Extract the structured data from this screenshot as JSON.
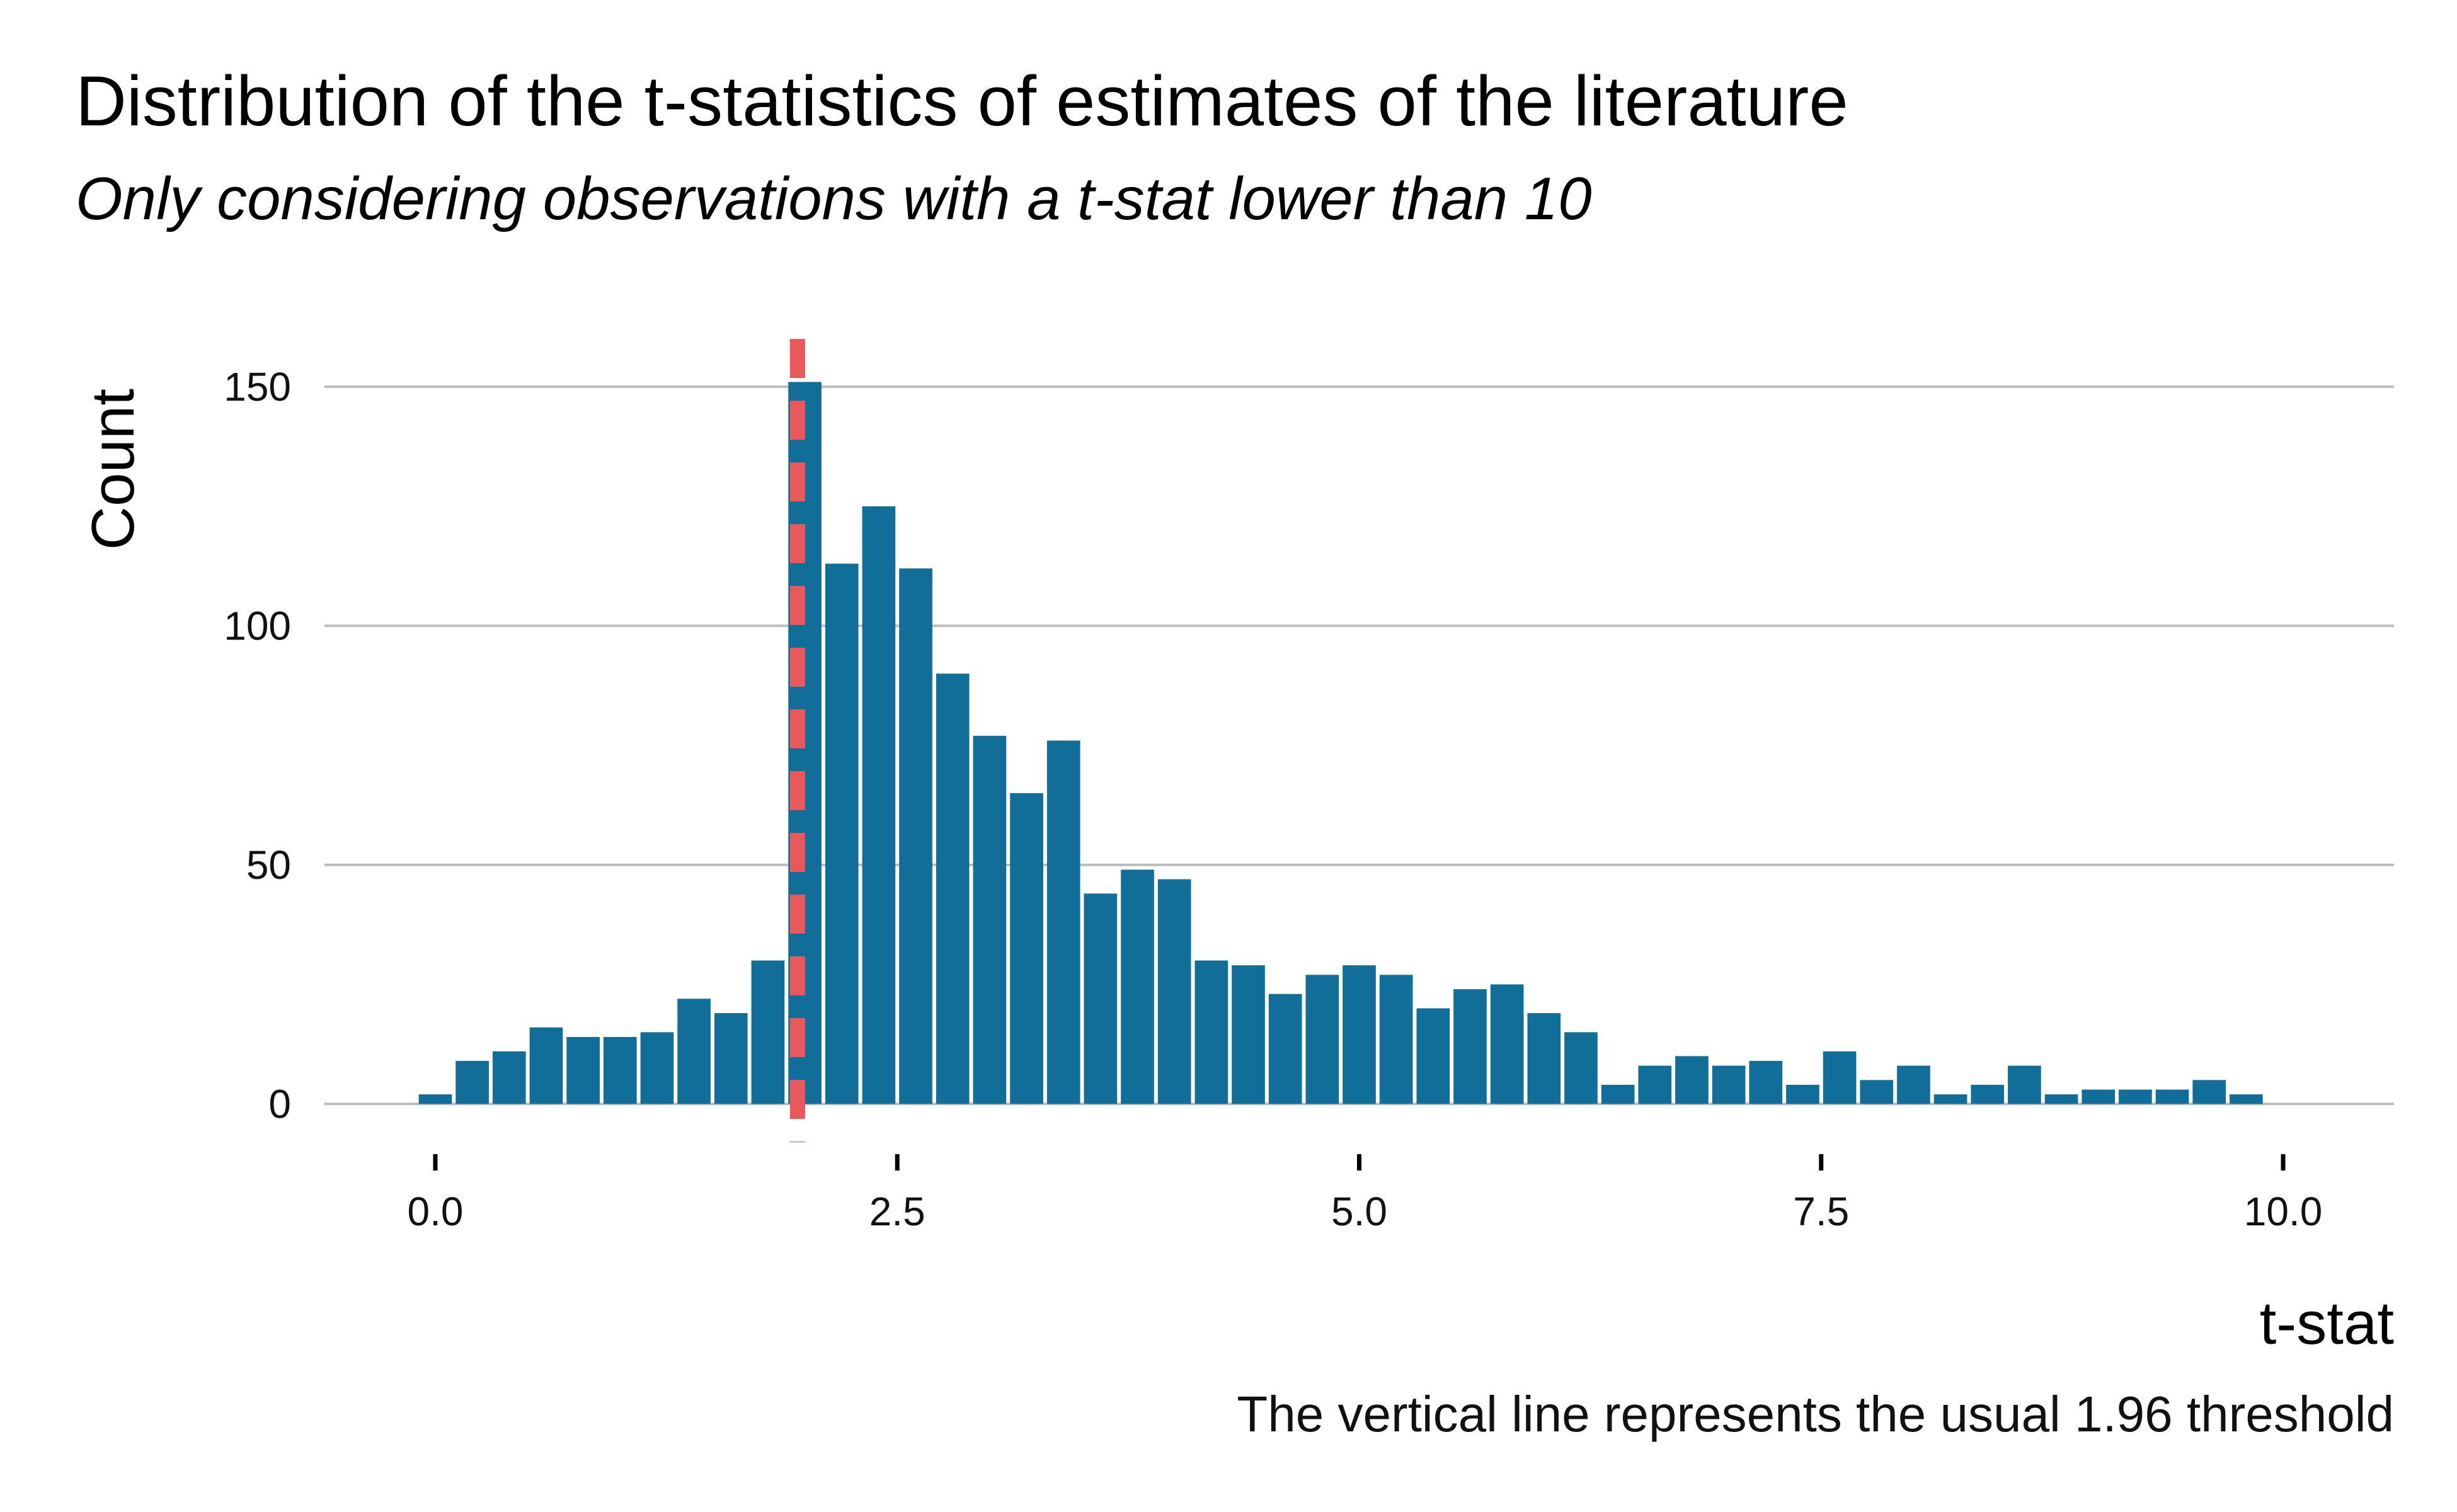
{
  "chart_data": {
    "type": "bar",
    "title": "Distribution of the t-statistics of estimates of the literature",
    "subtitle": "Only considering observations with a t-stat lower than 10",
    "xlabel": "t-stat",
    "ylabel": "Count",
    "caption": "The vertical line represents the usual 1.96 threshold",
    "xlim": [
      -0.6,
      10.6
    ],
    "ylim": [
      -8,
      160
    ],
    "x_ticks": [
      0,
      2.5,
      5,
      7.5,
      10
    ],
    "x_tick_labels": [
      "0.0",
      "2.5",
      "5.0",
      "7.5",
      "10.0"
    ],
    "y_ticks": [
      0,
      50,
      100,
      150
    ],
    "y_tick_labels": [
      "0",
      "50",
      "100",
      "150"
    ],
    "grid": "horizontal",
    "bin_width": 0.2,
    "bins": [
      0,
      0.2,
      0.4,
      0.6,
      0.8,
      1.0,
      1.2,
      1.4,
      1.6,
      1.8,
      2.0,
      2.2,
      2.4,
      2.6,
      2.8,
      3.0,
      3.2,
      3.4,
      3.6,
      3.8,
      4.0,
      4.2,
      4.4,
      4.6,
      4.8,
      5.0,
      5.2,
      5.4,
      5.6,
      5.8,
      6.0,
      6.2,
      6.4,
      6.6,
      6.8,
      7.0,
      7.2,
      7.4,
      7.6,
      7.8,
      8.0,
      8.2,
      8.4,
      8.6,
      8.8,
      9.0,
      9.2,
      9.4,
      9.6,
      9.8,
      10.0
    ],
    "values": [
      2,
      9,
      11,
      16,
      14,
      14,
      15,
      22,
      19,
      30,
      151,
      113,
      125,
      112,
      90,
      77,
      65,
      76,
      44,
      49,
      47,
      30,
      29,
      23,
      27,
      29,
      27,
      20,
      24,
      25,
      19,
      15,
      4,
      8,
      10,
      8,
      9,
      4,
      11,
      5,
      8,
      2,
      4,
      8,
      2,
      3,
      3,
      3,
      5,
      2,
      0
    ],
    "threshold": 1.96,
    "colors": {
      "bar": "#116E98",
      "threshold_line": "#E8585C",
      "grid": "#BDBDBD"
    }
  }
}
